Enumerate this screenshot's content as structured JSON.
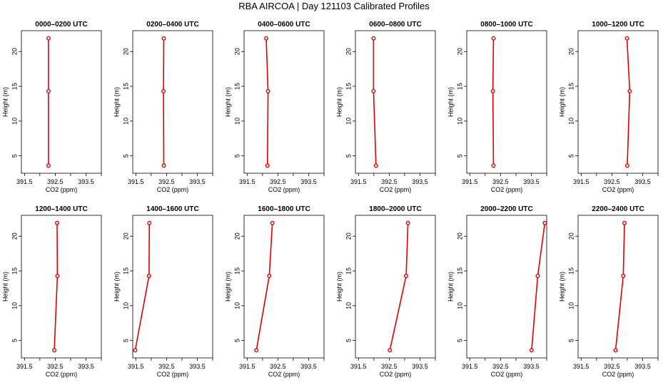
{
  "page": {
    "title": "RBA AIRCOA |  Day 121103  Calibrated Profiles"
  },
  "colors": {
    "series": "#e00000",
    "axis": "#000000",
    "background": "#ffffff"
  },
  "chart_data": [
    {
      "type": "line",
      "title": "0000–0200 UTC",
      "xlabel": "CO2 (ppm)",
      "ylabel": "Height (m)",
      "xlim": [
        391.4,
        394.0
      ],
      "ylim": [
        2.5,
        23.0
      ],
      "xticks": [
        "391.5",
        "392.5",
        "393.5"
      ],
      "yticks": [
        "5",
        "10",
        "15",
        "20"
      ],
      "grid": false,
      "series": [
        {
          "x": [
            392.28,
            392.28,
            392.28
          ],
          "y": [
            3.6,
            14.3,
            21.9
          ]
        }
      ]
    },
    {
      "type": "line",
      "title": "0200–0400 UTC",
      "xlabel": "CO2 (ppm)",
      "ylabel": "Height (m)",
      "xlim": [
        391.4,
        394.0
      ],
      "ylim": [
        2.5,
        23.0
      ],
      "xticks": [
        "391.5",
        "392.5",
        "393.5"
      ],
      "yticks": [
        "5",
        "10",
        "15",
        "20"
      ],
      "grid": false,
      "series": [
        {
          "x": [
            392.41,
            392.4,
            392.41
          ],
          "y": [
            3.6,
            14.3,
            21.9
          ]
        }
      ]
    },
    {
      "type": "line",
      "title": "0400–0600 UTC",
      "xlabel": "CO2 (ppm)",
      "ylabel": "Height (m)",
      "xlim": [
        391.4,
        394.0
      ],
      "ylim": [
        2.5,
        23.0
      ],
      "xticks": [
        "391.5",
        "392.5",
        "393.5"
      ],
      "yticks": [
        "5",
        "10",
        "15",
        "20"
      ],
      "grid": false,
      "series": [
        {
          "x": [
            392.16,
            392.18,
            392.12
          ],
          "y": [
            3.6,
            14.3,
            21.9
          ]
        }
      ]
    },
    {
      "type": "line",
      "title": "0600–0800 UTC",
      "xlabel": "CO2 (ppm)",
      "ylabel": "Height (m)",
      "xlim": [
        391.4,
        394.0
      ],
      "ylim": [
        2.5,
        23.0
      ],
      "xticks": [
        "391.5",
        "392.5",
        "393.5"
      ],
      "yticks": [
        "5",
        "10",
        "15",
        "20"
      ],
      "grid": false,
      "series": [
        {
          "x": [
            392.07,
            391.99,
            391.99
          ],
          "y": [
            3.6,
            14.3,
            21.9
          ]
        }
      ]
    },
    {
      "type": "line",
      "title": "0800–1000 UTC",
      "xlabel": "CO2 (ppm)",
      "ylabel": "Height (m)",
      "xlim": [
        391.4,
        394.0
      ],
      "ylim": [
        2.5,
        23.0
      ],
      "xticks": [
        "391.5",
        "392.5",
        "393.5"
      ],
      "yticks": [
        "5",
        "10",
        "15",
        "20"
      ],
      "grid": false,
      "series": [
        {
          "x": [
            392.27,
            392.25,
            392.27
          ],
          "y": [
            3.6,
            14.3,
            21.9
          ]
        }
      ]
    },
    {
      "type": "line",
      "title": "1000–1200 UTC",
      "xlabel": "CO2 (ppm)",
      "ylabel": "Height (m)",
      "xlim": [
        391.4,
        394.0
      ],
      "ylim": [
        2.5,
        23.0
      ],
      "xticks": [
        "391.5",
        "392.5",
        "393.5"
      ],
      "yticks": [
        "5",
        "10",
        "15",
        "20"
      ],
      "grid": false,
      "series": [
        {
          "x": [
            393.0,
            393.08,
            392.99
          ],
          "y": [
            3.6,
            14.3,
            21.9
          ]
        }
      ]
    },
    {
      "type": "line",
      "title": "1200–1400 UTC",
      "xlabel": "CO2 (ppm)",
      "ylabel": "Height (m)",
      "xlim": [
        391.4,
        394.0
      ],
      "ylim": [
        2.5,
        23.0
      ],
      "xticks": [
        "391.5",
        "392.5",
        "393.5"
      ],
      "yticks": [
        "5",
        "10",
        "15",
        "20"
      ],
      "grid": false,
      "series": [
        {
          "x": [
            392.47,
            392.57,
            392.56
          ],
          "y": [
            3.6,
            14.3,
            21.9
          ]
        }
      ]
    },
    {
      "type": "line",
      "title": "1400–1600 UTC",
      "xlabel": "CO2 (ppm)",
      "ylabel": "Height (m)",
      "xlim": [
        391.4,
        394.0
      ],
      "ylim": [
        2.5,
        23.0
      ],
      "xticks": [
        "391.5",
        "392.5",
        "393.5"
      ],
      "yticks": [
        "5",
        "10",
        "15",
        "20"
      ],
      "grid": false,
      "series": [
        {
          "x": [
            391.48,
            391.93,
            391.94
          ],
          "y": [
            3.6,
            14.3,
            21.9
          ]
        }
      ]
    },
    {
      "type": "line",
      "title": "1600–1800 UTC",
      "xlabel": "CO2 (ppm)",
      "ylabel": "Height (m)",
      "xlim": [
        391.4,
        394.0
      ],
      "ylim": [
        2.5,
        23.0
      ],
      "xticks": [
        "391.5",
        "392.5",
        "393.5"
      ],
      "yticks": [
        "5",
        "10",
        "15",
        "20"
      ],
      "grid": false,
      "series": [
        {
          "x": [
            391.8,
            392.22,
            392.32
          ],
          "y": [
            3.6,
            14.3,
            21.9
          ]
        }
      ]
    },
    {
      "type": "line",
      "title": "1800–2000 UTC",
      "xlabel": "CO2 (ppm)",
      "ylabel": "Height (m)",
      "xlim": [
        391.4,
        394.0
      ],
      "ylim": [
        2.5,
        23.0
      ],
      "xticks": [
        "391.5",
        "392.5",
        "393.5"
      ],
      "yticks": [
        "5",
        "10",
        "15",
        "20"
      ],
      "grid": false,
      "series": [
        {
          "x": [
            392.52,
            393.05,
            393.11
          ],
          "y": [
            3.6,
            14.3,
            21.9
          ]
        }
      ]
    },
    {
      "type": "line",
      "title": "2000–2200 UTC",
      "xlabel": "CO2 (ppm)",
      "ylabel": "Height (m)",
      "xlim": [
        391.4,
        394.0
      ],
      "ylim": [
        2.5,
        23.0
      ],
      "xticks": [
        "391.5",
        "392.5",
        "393.5"
      ],
      "yticks": [
        "5",
        "10",
        "15",
        "20"
      ],
      "grid": false,
      "series": [
        {
          "x": [
            393.51,
            393.71,
            393.94
          ],
          "y": [
            3.6,
            14.3,
            21.9
          ]
        }
      ]
    },
    {
      "type": "line",
      "title": "2200–2400 UTC",
      "xlabel": "CO2 (ppm)",
      "ylabel": "Height (m)",
      "xlim": [
        391.4,
        394.0
      ],
      "ylim": [
        2.5,
        23.0
      ],
      "xticks": [
        "391.5",
        "392.5",
        "393.5"
      ],
      "yticks": [
        "5",
        "10",
        "15",
        "20"
      ],
      "grid": false,
      "series": [
        {
          "x": [
            392.62,
            392.87,
            392.91
          ],
          "y": [
            3.6,
            14.3,
            21.9
          ]
        }
      ]
    }
  ]
}
